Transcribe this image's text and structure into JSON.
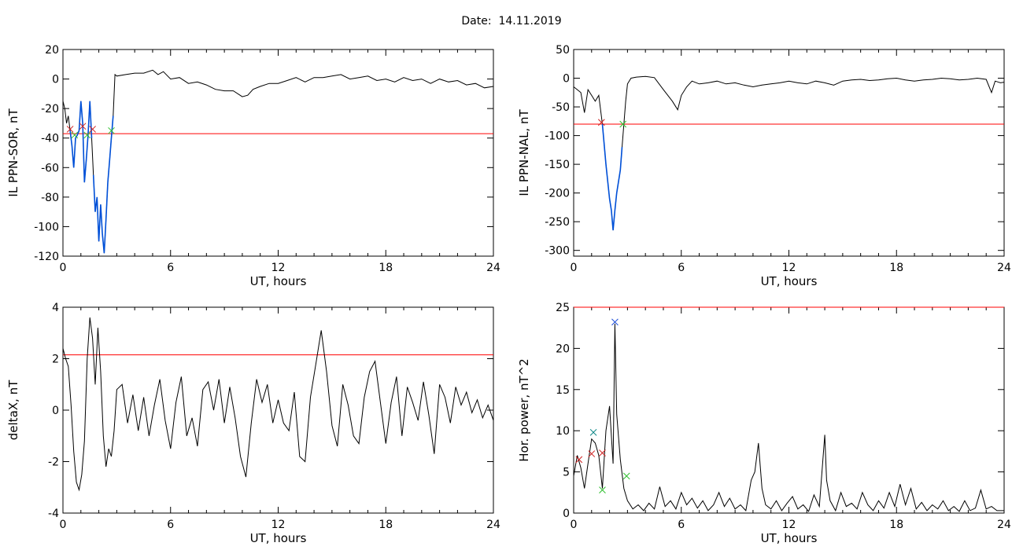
{
  "header": {
    "date_text": "Date:  14.11.2019"
  },
  "colors": {
    "axis": "#000000",
    "threshold": "#ff0000",
    "event": "#0050d8",
    "cross_start": "#d02020",
    "cross_end": "#30c030",
    "cross_peak": "#2050d8",
    "cross_teal": "#008080"
  },
  "chart_data": [
    {
      "id": "panel-1",
      "type": "line",
      "ylabel": "IL PPN-SOR, nT",
      "xlabel": "UT, hours",
      "xlim": [
        0,
        24
      ],
      "ylim": [
        -120,
        20
      ],
      "xticks": [
        0,
        6,
        12,
        18,
        24
      ],
      "yticks": [
        20,
        0,
        -20,
        -40,
        -60,
        -80,
        -100,
        -120
      ],
      "threshold": -37,
      "series": [
        {
          "x": [
            0,
            0.1,
            0.2,
            0.3,
            0.4,
            0.5,
            0.6,
            0.7,
            0.8,
            0.9,
            1.0,
            1.1,
            1.2,
            1.3,
            1.4,
            1.5,
            1.6,
            1.7,
            1.8,
            1.9,
            2.0,
            2.1,
            2.2,
            2.3,
            2.4,
            2.5,
            2.6,
            2.7,
            2.8,
            2.9,
            3.0,
            3.5,
            4.0,
            4.5,
            5.0,
            5.3,
            5.6,
            6.0,
            6.5,
            7.0,
            7.5,
            8.0,
            8.5,
            9.0,
            9.5,
            10.0,
            10.3,
            10.6,
            11.0,
            11.5,
            12.0,
            12.5,
            13.0,
            13.5,
            14.0,
            14.5,
            15.0,
            15.5,
            16.0,
            16.5,
            17.0,
            17.5,
            18.0,
            18.5,
            19.0,
            19.5,
            20.0,
            20.5,
            21.0,
            21.5,
            22.0,
            22.5,
            23.0,
            23.5,
            24.0
          ],
          "y": [
            -15,
            -20,
            -30,
            -25,
            -35,
            -45,
            -60,
            -40,
            -38,
            -35,
            -15,
            -30,
            -70,
            -55,
            -38,
            -15,
            -40,
            -65,
            -90,
            -80,
            -110,
            -85,
            -105,
            -118,
            -95,
            -70,
            -55,
            -40,
            -25,
            3,
            2,
            3,
            4,
            4,
            6,
            3,
            5,
            0,
            1,
            -3,
            -2,
            -4,
            -7,
            -8,
            -8,
            -12,
            -11,
            -7,
            -5,
            -3,
            -3,
            -1,
            1,
            -2,
            1,
            1,
            2,
            3,
            0,
            1,
            2,
            -1,
            0,
            -2,
            1,
            -1,
            0,
            -3,
            0,
            -2,
            -1,
            -4,
            -3,
            -6,
            -5
          ]
        }
      ],
      "event_segments": [
        [
          0.35,
          1.0
        ],
        [
          1.0,
          1.65
        ],
        [
          1.65,
          2.8
        ]
      ],
      "markers": [
        {
          "x": 0.4,
          "y": -34,
          "kind": "start"
        },
        {
          "x": 0.65,
          "y": -38,
          "kind": "end"
        },
        {
          "x": 1.1,
          "y": -32,
          "kind": "start"
        },
        {
          "x": 1.35,
          "y": -38,
          "kind": "end"
        },
        {
          "x": 1.65,
          "y": -34,
          "kind": "start"
        },
        {
          "x": 2.7,
          "y": -35,
          "kind": "end"
        }
      ]
    },
    {
      "id": "panel-2",
      "type": "line",
      "ylabel": "IL PPN-NAL, nT",
      "xlabel": "UT, hours",
      "xlim": [
        0,
        24
      ],
      "ylim": [
        -310,
        50
      ],
      "xticks": [
        0,
        6,
        12,
        18,
        24
      ],
      "yticks": [
        50,
        0,
        -50,
        -100,
        -150,
        -200,
        -250,
        -300
      ],
      "threshold": -80,
      "series": [
        {
          "x": [
            0,
            0.2,
            0.4,
            0.6,
            0.8,
            1.0,
            1.2,
            1.4,
            1.6,
            1.8,
            2.0,
            2.1,
            2.2,
            2.3,
            2.4,
            2.5,
            2.6,
            2.7,
            2.8,
            2.9,
            3.0,
            3.2,
            3.5,
            4.0,
            4.5,
            5.0,
            5.5,
            5.8,
            6.0,
            6.3,
            6.6,
            7.0,
            7.5,
            8.0,
            8.5,
            9.0,
            9.5,
            10.0,
            10.5,
            11.0,
            11.5,
            12.0,
            12.5,
            13.0,
            13.5,
            14.0,
            14.5,
            15.0,
            15.5,
            16.0,
            16.5,
            17.0,
            17.5,
            18.0,
            18.5,
            19.0,
            19.5,
            20.0,
            20.5,
            21.0,
            21.5,
            22.0,
            22.5,
            23.0,
            23.3,
            23.5,
            23.8,
            24.0
          ],
          "y": [
            -15,
            -20,
            -25,
            -60,
            -20,
            -30,
            -40,
            -30,
            -80,
            -150,
            -210,
            -230,
            -265,
            -230,
            -200,
            -180,
            -160,
            -120,
            -80,
            -40,
            -10,
            0,
            2,
            3,
            1,
            -20,
            -40,
            -55,
            -30,
            -15,
            -5,
            -10,
            -8,
            -5,
            -10,
            -8,
            -12,
            -15,
            -12,
            -10,
            -8,
            -5,
            -8,
            -10,
            -5,
            -8,
            -12,
            -5,
            -3,
            -2,
            -4,
            -3,
            -1,
            0,
            -3,
            -5,
            -3,
            -2,
            0,
            -1,
            -3,
            -2,
            0,
            -2,
            -25,
            -5,
            -8,
            -7
          ]
        }
      ],
      "event_segments": [
        [
          1.55,
          2.75
        ]
      ],
      "markers": [
        {
          "x": 1.55,
          "y": -77,
          "kind": "start"
        },
        {
          "x": 2.75,
          "y": -80,
          "kind": "end"
        }
      ]
    },
    {
      "id": "panel-3",
      "type": "line",
      "ylabel": "deltaX, nT",
      "xlabel": "UT, hours",
      "xlim": [
        0,
        24
      ],
      "ylim": [
        -4,
        4
      ],
      "xticks": [
        0,
        6,
        12,
        18,
        24
      ],
      "yticks": [
        4,
        2,
        0,
        -2,
        -4
      ],
      "threshold": 2.15,
      "series": [
        {
          "x": [
            0,
            0.15,
            0.3,
            0.45,
            0.6,
            0.75,
            0.9,
            1.05,
            1.2,
            1.35,
            1.5,
            1.65,
            1.8,
            1.95,
            2.1,
            2.25,
            2.4,
            2.55,
            2.7,
            2.85,
            3.0,
            3.3,
            3.6,
            3.9,
            4.2,
            4.5,
            4.8,
            5.1,
            5.4,
            5.7,
            6.0,
            6.3,
            6.6,
            6.9,
            7.2,
            7.5,
            7.8,
            8.1,
            8.4,
            8.7,
            9.0,
            9.3,
            9.6,
            9.9,
            10.2,
            10.5,
            10.8,
            11.1,
            11.4,
            11.7,
            12.0,
            12.3,
            12.6,
            12.9,
            13.2,
            13.5,
            13.8,
            14.1,
            14.4,
            14.7,
            15.0,
            15.3,
            15.6,
            15.9,
            16.2,
            16.5,
            16.8,
            17.1,
            17.4,
            17.7,
            18.0,
            18.3,
            18.6,
            18.9,
            19.2,
            19.5,
            19.8,
            20.1,
            20.4,
            20.7,
            21.0,
            21.3,
            21.6,
            21.9,
            22.2,
            22.5,
            22.8,
            23.1,
            23.4,
            23.7,
            24.0
          ],
          "y": [
            2.4,
            2.0,
            1.7,
            0.2,
            -1.6,
            -2.8,
            -3.1,
            -2.5,
            -1.2,
            2.0,
            3.6,
            2.8,
            1.0,
            3.2,
            1.5,
            -1.0,
            -2.2,
            -1.5,
            -1.8,
            -0.8,
            0.8,
            1.0,
            -0.5,
            0.6,
            -0.8,
            0.5,
            -1.0,
            0.2,
            1.2,
            -0.4,
            -1.5,
            0.3,
            1.3,
            -1.0,
            -0.3,
            -1.4,
            0.8,
            1.1,
            0.0,
            1.2,
            -0.5,
            0.9,
            -0.3,
            -1.8,
            -2.6,
            -0.5,
            1.2,
            0.3,
            1.0,
            -0.5,
            0.4,
            -0.5,
            -0.8,
            0.7,
            -1.8,
            -2.0,
            0.5,
            1.8,
            3.1,
            1.5,
            -0.6,
            -1.4,
            1.0,
            0.2,
            -1.0,
            -1.3,
            0.5,
            1.5,
            1.9,
            0.3,
            -1.3,
            0.3,
            1.3,
            -1.0,
            0.9,
            0.3,
            -0.4,
            1.1,
            -0.2,
            -1.7,
            1.0,
            0.5,
            -0.5,
            0.9,
            0.2,
            0.7,
            -0.1,
            0.4,
            -0.3,
            0.2,
            -0.4
          ]
        }
      ],
      "event_segments": [],
      "markers": []
    },
    {
      "id": "panel-4",
      "type": "line",
      "ylabel": "Hor. power, nT^2",
      "xlabel": "UT, hours",
      "xlim": [
        0,
        24
      ],
      "ylim": [
        0,
        25
      ],
      "xticks": [
        0,
        6,
        12,
        18,
        24
      ],
      "yticks": [
        25,
        20,
        15,
        10,
        5,
        0
      ],
      "threshold": 25,
      "series": [
        {
          "x": [
            0,
            0.2,
            0.4,
            0.6,
            0.8,
            1.0,
            1.2,
            1.4,
            1.6,
            1.8,
            2.0,
            2.2,
            2.3,
            2.4,
            2.6,
            2.8,
            3.0,
            3.3,
            3.6,
            3.9,
            4.2,
            4.5,
            4.8,
            5.1,
            5.4,
            5.7,
            6.0,
            6.3,
            6.6,
            6.9,
            7.2,
            7.5,
            7.8,
            8.1,
            8.4,
            8.7,
            9.0,
            9.3,
            9.6,
            9.9,
            10.1,
            10.3,
            10.5,
            10.7,
            11.0,
            11.3,
            11.6,
            11.9,
            12.2,
            12.5,
            12.8,
            13.1,
            13.4,
            13.7,
            14.0,
            14.1,
            14.3,
            14.6,
            14.9,
            15.2,
            15.5,
            15.8,
            16.1,
            16.4,
            16.7,
            17.0,
            17.3,
            17.6,
            17.9,
            18.2,
            18.5,
            18.8,
            19.1,
            19.4,
            19.7,
            20.0,
            20.3,
            20.6,
            20.9,
            21.2,
            21.5,
            21.8,
            22.1,
            22.4,
            22.7,
            23.0,
            23.3,
            23.6,
            24.0
          ],
          "y": [
            4.5,
            7.0,
            5.5,
            3.0,
            6.0,
            9.0,
            8.5,
            7.0,
            3.0,
            10.0,
            13.0,
            6.0,
            23.0,
            12.0,
            6.5,
            3.0,
            1.5,
            0.5,
            1.0,
            0.3,
            1.2,
            0.5,
            3.2,
            0.8,
            1.5,
            0.5,
            2.5,
            1.0,
            1.8,
            0.6,
            1.5,
            0.3,
            1.0,
            2.5,
            0.8,
            1.8,
            0.5,
            1.0,
            0.3,
            4.0,
            5.0,
            8.5,
            3.0,
            1.0,
            0.5,
            1.5,
            0.3,
            1.2,
            2.0,
            0.5,
            1.0,
            0.2,
            2.2,
            0.8,
            9.5,
            4.0,
            1.5,
            0.3,
            2.5,
            0.8,
            1.2,
            0.5,
            2.5,
            1.0,
            0.3,
            1.5,
            0.6,
            2.5,
            0.8,
            3.5,
            1.0,
            3.0,
            0.5,
            1.3,
            0.3,
            1.0,
            0.5,
            1.5,
            0.3,
            0.8,
            0.2,
            1.5,
            0.3,
            0.6,
            2.8,
            0.5,
            0.8,
            0.3,
            0.3
          ]
        }
      ],
      "event_segments": [],
      "markers": [
        {
          "x": 0.3,
          "y": 6.5,
          "kind": "start"
        },
        {
          "x": 1.0,
          "y": 7.2,
          "kind": "start"
        },
        {
          "x": 1.6,
          "y": 7.3,
          "kind": "start"
        },
        {
          "x": 1.1,
          "y": 9.8,
          "kind": "teal"
        },
        {
          "x": 1.6,
          "y": 2.8,
          "kind": "end"
        },
        {
          "x": 2.95,
          "y": 4.5,
          "kind": "end"
        },
        {
          "x": 2.3,
          "y": 23.2,
          "kind": "peak"
        }
      ]
    }
  ]
}
